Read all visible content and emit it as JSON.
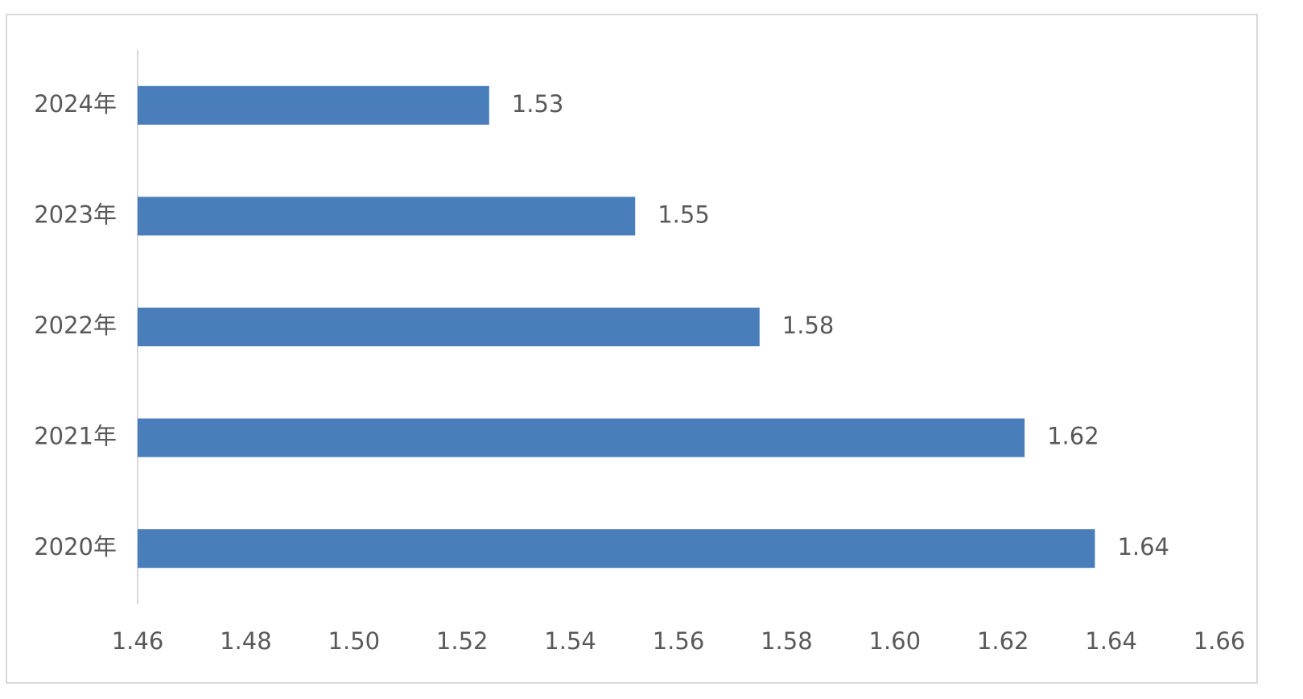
{
  "chart_data": {
    "type": "bar",
    "orientation": "horizontal",
    "categories": [
      "2024年",
      "2023年",
      "2022年",
      "2021年",
      "2020年"
    ],
    "values": [
      1.525,
      1.552,
      1.575,
      1.624,
      1.637
    ],
    "value_labels": [
      "1.53",
      "1.55",
      "1.58",
      "1.62",
      "1.64"
    ],
    "color": "#4a7ebb",
    "xlim": [
      1.46,
      1.66
    ],
    "xticks": [
      1.46,
      1.48,
      {
        "value": 1.5,
        "label": "1.50"
      },
      1.52,
      1.54,
      1.56,
      1.58,
      {
        "value": 1.6,
        "label": "1.60"
      },
      1.62,
      1.64,
      1.66
    ],
    "grid": false
  }
}
